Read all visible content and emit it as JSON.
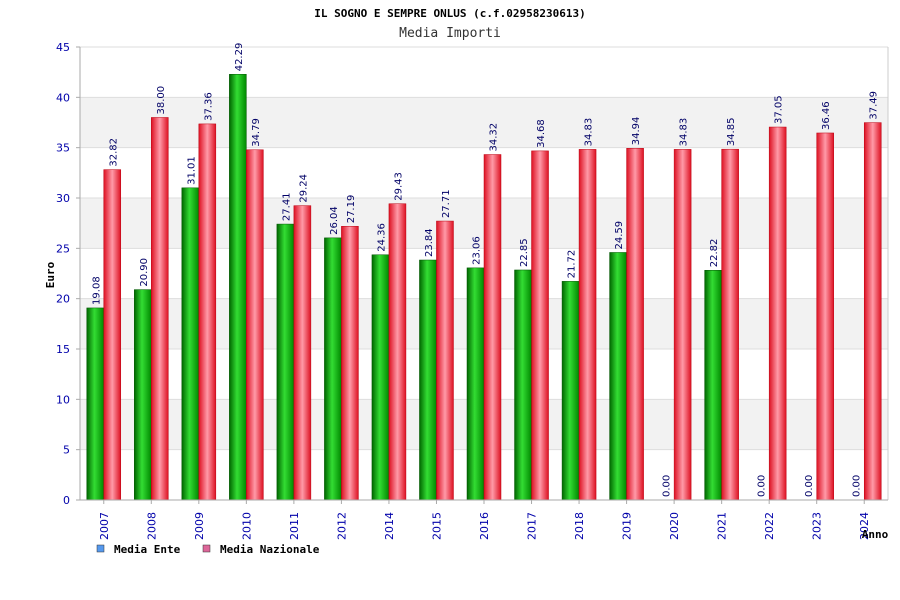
{
  "chart_data": {
    "type": "bar",
    "title": "IL SOGNO E SEMPRE ONLUS (c.f.02958230613)",
    "subtitle": "Media Importi",
    "ylabel": "Euro",
    "xlabel": "Anno",
    "ylim": [
      0,
      45
    ],
    "yticks": [
      0,
      5,
      10,
      15,
      20,
      25,
      30,
      35,
      40,
      45
    ],
    "categories": [
      "2007",
      "2008",
      "2009",
      "2010",
      "2011",
      "2012",
      "2014",
      "2015",
      "2016",
      "2017",
      "2018",
      "2019",
      "2020",
      "2021",
      "2022",
      "2023",
      "2024"
    ],
    "series": [
      {
        "name": "Media Ente",
        "color": "#00aa00",
        "legend_color": "#5599ee",
        "values": [
          19.08,
          20.9,
          31.01,
          42.29,
          27.41,
          26.04,
          24.36,
          23.84,
          23.06,
          22.85,
          21.72,
          24.59,
          0.0,
          22.82,
          0.0,
          0.0,
          0.0
        ],
        "labels": [
          "19.08",
          "20.90",
          "31.01",
          "42.29",
          "27.41",
          "26.04",
          "24.36",
          "23.84",
          "23.06",
          "22.85",
          "21.72",
          "24.59",
          "0.00",
          "22.82",
          "0.00",
          "0.00",
          "0.00"
        ]
      },
      {
        "name": "Media Nazionale",
        "color": "#ee3344",
        "legend_color": "#dd6699",
        "values": [
          32.82,
          38.0,
          37.36,
          34.79,
          29.24,
          27.19,
          29.43,
          27.71,
          34.32,
          34.68,
          34.83,
          34.94,
          34.83,
          34.85,
          37.05,
          36.46,
          37.49
        ],
        "labels": [
          "32.82",
          "38.00",
          "37.36",
          "34.79",
          "29.24",
          "27.19",
          "29.43",
          "27.71",
          "34.32",
          "34.68",
          "34.83",
          "34.94",
          "34.83",
          "34.85",
          "37.05",
          "36.46",
          "37.49"
        ]
      }
    ],
    "grid": true,
    "legend": "bottom-left"
  }
}
